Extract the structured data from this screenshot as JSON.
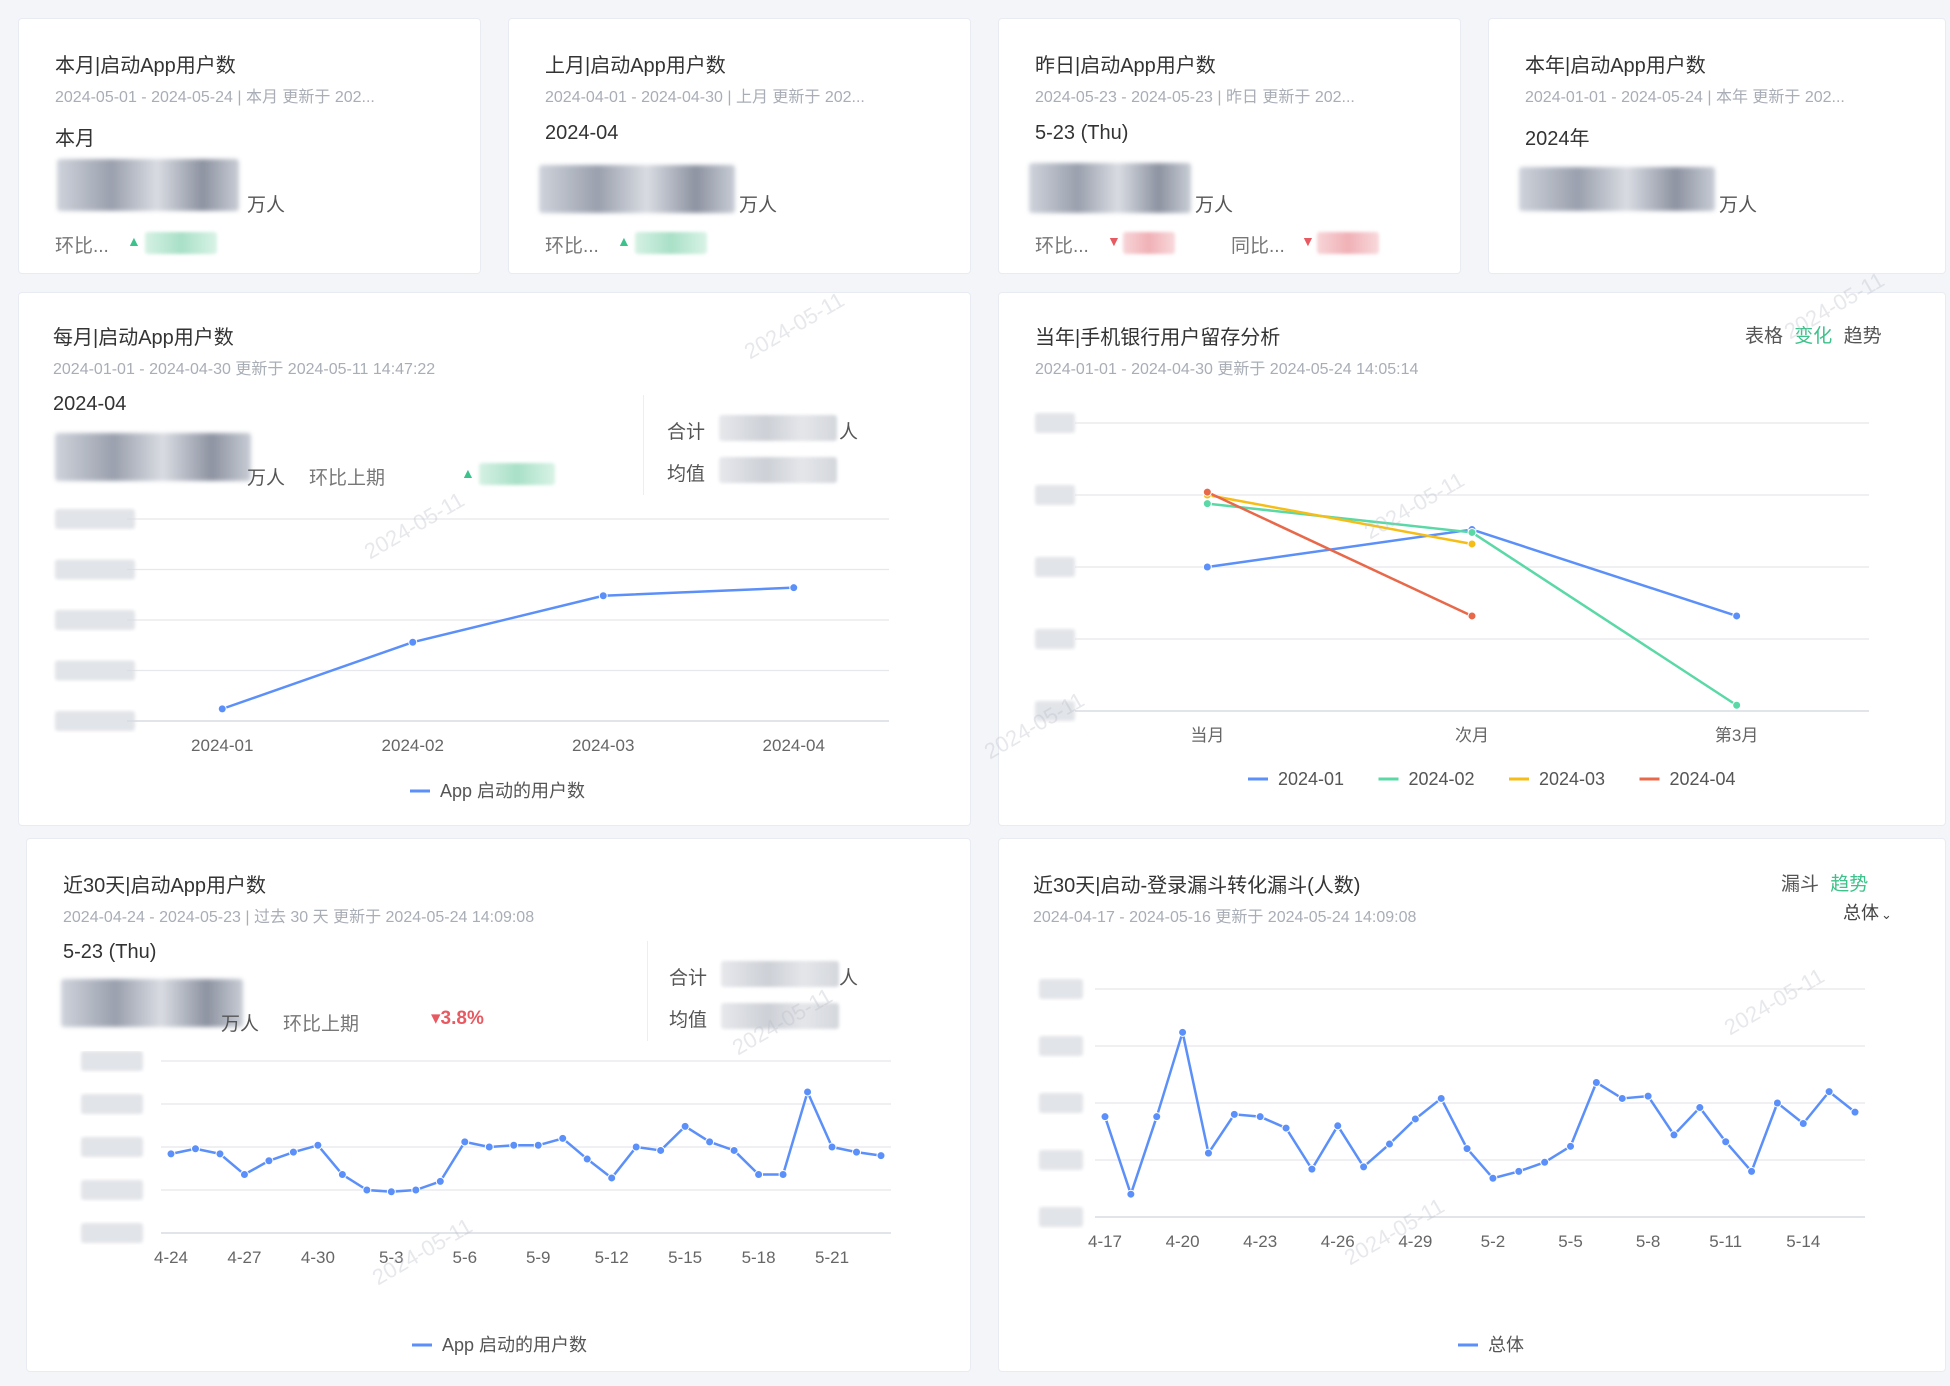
{
  "kpis": [
    {
      "title": "本月|启动App用户数",
      "subtitle": "2024-05-01 - 2024-05-24 | 本月 更新于 202...",
      "period": "本月",
      "unit": "万人",
      "compare1": "环比...",
      "compare1_dir": "up",
      "compare2": "",
      "compare2_dir": ""
    },
    {
      "title": "上月|启动App用户数",
      "subtitle": "2024-04-01 - 2024-04-30 | 上月 更新于 202...",
      "period": "2024-04",
      "unit": "万人",
      "compare1": "环比...",
      "compare1_dir": "up",
      "compare2": "",
      "compare2_dir": ""
    },
    {
      "title": "昨日|启动App用户数",
      "subtitle": "2024-05-23 - 2024-05-23 | 昨日 更新于 202...",
      "period": "5-23 (Thu)",
      "unit": "万人",
      "compare1": "环比...",
      "compare1_dir": "down",
      "compare2": "同比...",
      "compare2_dir": "down"
    },
    {
      "title": "本年|启动App用户数",
      "subtitle": "2024-01-01 - 2024-05-24 | 本年 更新于 202...",
      "period": "2024年",
      "unit": "万人",
      "compare1": "",
      "compare1_dir": "",
      "compare2": "",
      "compare2_dir": ""
    }
  ],
  "monthly": {
    "title": "每月|启动App用户数",
    "subtitle": "2024-01-01 - 2024-04-30 更新于 2024-05-11 14:47:22",
    "period": "2024-04",
    "unit": "万人",
    "compare_label": "环比上期",
    "total_label": "合计",
    "avg_label": "均值",
    "total_unit": "人"
  },
  "retention": {
    "title": "当年|手机银行用户留存分析",
    "subtitle": "2024-01-01 - 2024-04-30 更新于 2024-05-24 14:05:14",
    "tabs": [
      {
        "label": "表格",
        "active": false
      },
      {
        "label": "变化",
        "active": true
      },
      {
        "label": "趋势",
        "active": false
      }
    ]
  },
  "daily": {
    "title": "近30天|启动App用户数",
    "subtitle": "2024-04-24 - 2024-05-23 | 过去 30 天 更新于 2024-05-24 14:09:08",
    "period": "5-23 (Thu)",
    "unit": "万人",
    "compare_label": "环比上期",
    "compare_value": "▾3.8%",
    "total_label": "合计",
    "avg_label": "均值",
    "total_unit": "人"
  },
  "funnel": {
    "title": "近30天|启动-登录漏斗转化漏斗(人数)",
    "subtitle": "2024-04-17 - 2024-05-16 更新于 2024-05-24 14:09:08",
    "tabs": [
      {
        "label": "漏斗",
        "active": false
      },
      {
        "label": "趋势",
        "active": true
      }
    ],
    "select_value": "总体"
  },
  "watermark": "2024-05-11",
  "colors": {
    "blue": "#5b8ff9",
    "green": "#5ad8a6",
    "yellow": "#f6bd16",
    "red": "#e8684a",
    "up": "#3cc28a",
    "down": "#e85a62"
  },
  "chart_data": [
    {
      "type": "line",
      "id": "monthly",
      "categories": [
        "2024-01",
        "2024-02",
        "2024-03",
        "2024-04"
      ],
      "series": [
        {
          "name": "App 启动的用户数",
          "values": [
            0.06,
            0.39,
            0.62,
            0.66
          ]
        }
      ],
      "ylim": [
        0,
        1
      ],
      "grid": true,
      "legend": "bottom"
    },
    {
      "type": "line",
      "id": "retention",
      "categories": [
        "当月",
        "次月",
        "第3月"
      ],
      "series": [
        {
          "name": "2024-01",
          "values": [
            0.5,
            0.63,
            0.33
          ]
        },
        {
          "name": "2024-02",
          "values": [
            0.72,
            0.62,
            0.02
          ]
        },
        {
          "name": "2024-03",
          "values": [
            0.75,
            0.58,
            null
          ]
        },
        {
          "name": "2024-04",
          "values": [
            0.76,
            0.33,
            null
          ]
        }
      ],
      "ylim": [
        0,
        1
      ],
      "grid": true,
      "legend": "bottom"
    },
    {
      "type": "line",
      "id": "daily",
      "categories": [
        "4-24",
        "4-25",
        "4-26",
        "4-27",
        "4-28",
        "4-29",
        "4-30",
        "5-1",
        "5-2",
        "5-3",
        "5-4",
        "5-5",
        "5-6",
        "5-7",
        "5-8",
        "5-9",
        "5-10",
        "5-11",
        "5-12",
        "5-13",
        "5-14",
        "5-15",
        "5-16",
        "5-17",
        "5-18",
        "5-19",
        "5-20",
        "5-21",
        "5-22",
        "5-23"
      ],
      "tick_labels": [
        "4-24",
        "4-27",
        "4-30",
        "5-3",
        "5-6",
        "5-9",
        "5-12",
        "5-15",
        "5-18",
        "5-21"
      ],
      "series": [
        {
          "name": "App 启动的用户数",
          "values": [
            0.46,
            0.49,
            0.46,
            0.34,
            0.42,
            0.47,
            0.51,
            0.34,
            0.25,
            0.24,
            0.25,
            0.3,
            0.53,
            0.5,
            0.51,
            0.51,
            0.55,
            0.43,
            0.32,
            0.5,
            0.48,
            0.62,
            0.53,
            0.48,
            0.34,
            0.34,
            0.82,
            0.5,
            0.47,
            0.45
          ]
        }
      ],
      "ylim": [
        0,
        1
      ],
      "grid": true,
      "legend": "bottom"
    },
    {
      "type": "line",
      "id": "funnel",
      "categories": [
        "4-17",
        "4-18",
        "4-19",
        "4-20",
        "4-21",
        "4-22",
        "4-23",
        "4-24",
        "4-25",
        "4-26",
        "4-27",
        "4-28",
        "4-29",
        "4-30",
        "5-1",
        "5-2",
        "5-3",
        "5-4",
        "5-5",
        "5-6",
        "5-7",
        "5-8",
        "5-9",
        "5-10",
        "5-11",
        "5-12",
        "5-13",
        "5-14",
        "5-15",
        "5-16"
      ],
      "tick_labels": [
        "4-17",
        "4-20",
        "4-23",
        "4-26",
        "4-29",
        "5-2",
        "5-5",
        "5-8",
        "5-11",
        "5-14"
      ],
      "series": [
        {
          "name": "总体",
          "values": [
            0.44,
            0.1,
            0.44,
            0.81,
            0.28,
            0.45,
            0.44,
            0.39,
            0.21,
            0.4,
            0.22,
            0.32,
            0.43,
            0.52,
            0.3,
            0.17,
            0.2,
            0.24,
            0.31,
            0.59,
            0.52,
            0.53,
            0.36,
            0.48,
            0.33,
            0.2,
            0.5,
            0.41,
            0.55,
            0.46
          ]
        }
      ],
      "ylim": [
        0,
        1
      ],
      "grid": true,
      "legend": "bottom"
    }
  ]
}
